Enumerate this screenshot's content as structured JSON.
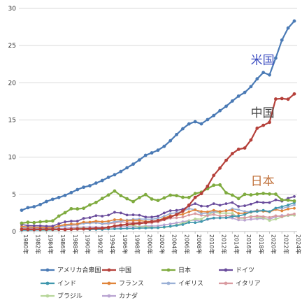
{
  "chart_data": {
    "type": "line",
    "title": "",
    "xlabel": "",
    "ylabel": "",
    "ylim": [
      0,
      30
    ],
    "yticks": [
      0,
      5,
      10,
      15,
      20,
      25,
      30
    ],
    "grid": "horizontal",
    "legend_position": "bottom",
    "x": [
      "1980年",
      "1981年",
      "1982年",
      "1983年",
      "1984年",
      "1985年",
      "1986年",
      "1987年",
      "1988年",
      "1989年",
      "1990年",
      "1991年",
      "1992年",
      "1993年",
      "1994年",
      "1995年",
      "1996年",
      "1997年",
      "1998年",
      "1999年",
      "2000年",
      "2001年",
      "2002年",
      "2003年",
      "2004年",
      "2005年",
      "2006年",
      "2007年",
      "2008年",
      "2009年",
      "2010年",
      "2011年",
      "2012年",
      "2013年",
      "2014年",
      "2015年",
      "2016年",
      "2017年",
      "2018年",
      "2019年",
      "2020年",
      "2021年",
      "2022年",
      "2023年",
      "2024年"
    ],
    "xtick_labels": [
      "1980年",
      "1982年",
      "1984年",
      "1986年",
      "1988年",
      "1990年",
      "1992年",
      "1994年",
      "1996年",
      "1998年",
      "2000年",
      "2002年",
      "2004年",
      "2006年",
      "2008年",
      "2010年",
      "2012年",
      "2014年",
      "2016年",
      "2018年",
      "2020年",
      "2022年",
      "2024年"
    ],
    "callouts": [
      {
        "text": "米国",
        "series": "アメリカ合衆国",
        "color": "#3b4cc0"
      },
      {
        "text": "中国",
        "series": "中国",
        "color": "#444444"
      },
      {
        "text": "日本",
        "series": "日本",
        "color": "#c0703a"
      }
    ],
    "series": [
      {
        "name": "アメリカ合衆国",
        "color": "#4a7ab5",
        "values": [
          2.86,
          3.21,
          3.34,
          3.63,
          4.04,
          4.34,
          4.58,
          4.86,
          5.24,
          5.64,
          5.96,
          6.16,
          6.52,
          6.86,
          7.29,
          7.64,
          8.07,
          8.58,
          9.06,
          9.63,
          10.25,
          10.58,
          10.94,
          11.46,
          12.21,
          13.04,
          13.82,
          14.47,
          14.77,
          14.48,
          15.05,
          15.6,
          16.25,
          16.84,
          17.55,
          18.21,
          18.7,
          19.48,
          20.53,
          21.38,
          21.06,
          23.32,
          25.74,
          27.36,
          28.3
        ]
      },
      {
        "name": "中国",
        "color": "#b5403a",
        "values": [
          0.3,
          0.29,
          0.28,
          0.3,
          0.31,
          0.31,
          0.3,
          0.27,
          0.31,
          0.35,
          0.36,
          0.38,
          0.43,
          0.44,
          0.56,
          0.73,
          0.86,
          0.96,
          1.03,
          1.09,
          1.21,
          1.34,
          1.47,
          1.66,
          1.96,
          2.29,
          2.75,
          3.55,
          4.59,
          5.1,
          6.09,
          7.55,
          8.53,
          9.57,
          10.48,
          11.06,
          11.23,
          12.31,
          13.89,
          14.28,
          14.69,
          17.82,
          17.88,
          17.79,
          18.5
        ]
      },
      {
        "name": "日本",
        "color": "#7fab3f",
        "values": [
          1.13,
          1.25,
          1.2,
          1.3,
          1.37,
          1.43,
          2.08,
          2.54,
          3.07,
          3.05,
          3.13,
          3.58,
          3.91,
          4.45,
          4.91,
          5.45,
          4.83,
          4.41,
          4.03,
          4.56,
          4.97,
          4.37,
          4.18,
          4.52,
          4.89,
          4.83,
          4.6,
          4.58,
          5.11,
          5.29,
          5.76,
          6.23,
          6.27,
          5.21,
          4.9,
          4.44,
          5.0,
          4.93,
          5.04,
          5.12,
          5.05,
          5.03,
          4.26,
          4.21,
          4.11
        ]
      },
      {
        "name": "ドイツ",
        "color": "#6a4c9c",
        "values": [
          0.95,
          0.8,
          0.78,
          0.77,
          0.72,
          0.73,
          1.05,
          1.31,
          1.4,
          1.4,
          1.77,
          1.87,
          2.14,
          2.07,
          2.21,
          2.59,
          2.5,
          2.22,
          2.24,
          2.2,
          1.95,
          1.95,
          2.08,
          2.5,
          2.81,
          2.85,
          3.0,
          3.43,
          3.75,
          3.42,
          3.4,
          3.75,
          3.54,
          3.75,
          3.9,
          3.38,
          3.47,
          3.69,
          3.98,
          3.89,
          3.89,
          4.26,
          4.08,
          4.46,
          4.71
        ]
      },
      {
        "name": "インド",
        "color": "#3f97ad",
        "values": [
          0.19,
          0.2,
          0.21,
          0.22,
          0.22,
          0.24,
          0.25,
          0.28,
          0.3,
          0.3,
          0.32,
          0.27,
          0.29,
          0.28,
          0.33,
          0.36,
          0.39,
          0.42,
          0.42,
          0.46,
          0.47,
          0.49,
          0.51,
          0.61,
          0.71,
          0.82,
          0.94,
          1.22,
          1.2,
          1.34,
          1.68,
          1.82,
          1.83,
          1.86,
          2.04,
          2.1,
          2.29,
          2.65,
          2.7,
          2.84,
          2.67,
          3.15,
          3.35,
          3.57,
          3.89
        ]
      },
      {
        "name": "フランス",
        "color": "#e0843a",
        "values": [
          0.7,
          0.62,
          0.58,
          0.56,
          0.53,
          0.55,
          0.77,
          0.93,
          1.01,
          1.01,
          1.27,
          1.27,
          1.4,
          1.32,
          1.39,
          1.6,
          1.61,
          1.46,
          1.51,
          1.49,
          1.36,
          1.38,
          1.49,
          1.84,
          2.12,
          2.2,
          2.32,
          2.66,
          2.92,
          2.69,
          2.64,
          2.86,
          2.68,
          2.81,
          2.86,
          2.44,
          2.47,
          2.59,
          2.79,
          2.73,
          2.64,
          2.96,
          2.78,
          3.03,
          3.13
        ]
      },
      {
        "name": "イギリス",
        "color": "#9ab0d6",
        "values": [
          0.56,
          0.54,
          0.51,
          0.49,
          0.46,
          0.49,
          0.6,
          0.75,
          0.91,
          0.93,
          1.09,
          1.14,
          1.18,
          1.06,
          1.14,
          1.34,
          1.41,
          1.55,
          1.65,
          1.68,
          1.66,
          1.64,
          1.78,
          2.06,
          2.42,
          2.54,
          2.71,
          3.09,
          2.92,
          2.41,
          2.49,
          2.66,
          2.71,
          2.78,
          3.06,
          2.93,
          2.69,
          2.68,
          2.87,
          2.85,
          2.7,
          3.14,
          3.09,
          3.34,
          3.59
        ]
      },
      {
        "name": "イタリア",
        "color": "#d99aa0",
        "values": [
          0.48,
          0.43,
          0.43,
          0.44,
          0.44,
          0.45,
          0.63,
          0.78,
          0.86,
          0.89,
          1.14,
          1.2,
          1.27,
          1.02,
          1.06,
          1.17,
          1.31,
          1.24,
          1.27,
          1.25,
          1.15,
          1.17,
          1.27,
          1.57,
          1.8,
          1.85,
          1.94,
          2.21,
          2.41,
          2.19,
          2.14,
          2.29,
          2.09,
          2.14,
          2.16,
          1.84,
          1.88,
          1.96,
          2.09,
          2.01,
          1.9,
          2.12,
          2.01,
          2.26,
          2.37
        ]
      },
      {
        "name": "ブラジル",
        "color": "#b7d69a",
        "values": [
          0.24,
          0.26,
          0.28,
          0.2,
          0.2,
          0.22,
          0.26,
          0.29,
          0.33,
          0.44,
          0.46,
          0.41,
          0.39,
          0.44,
          0.56,
          0.77,
          0.85,
          0.88,
          0.86,
          0.6,
          0.66,
          0.56,
          0.51,
          0.56,
          0.67,
          0.89,
          1.11,
          1.4,
          1.7,
          1.67,
          2.21,
          2.62,
          2.47,
          2.47,
          2.46,
          1.8,
          1.8,
          2.06,
          1.92,
          1.87,
          1.48,
          1.67,
          1.95,
          2.17,
          2.19
        ]
      },
      {
        "name": "カナダ",
        "color": "#b9a3d1",
        "values": [
          0.27,
          0.31,
          0.31,
          0.34,
          0.35,
          0.36,
          0.37,
          0.43,
          0.51,
          0.57,
          0.59,
          0.61,
          0.59,
          0.58,
          0.58,
          0.6,
          0.63,
          0.66,
          0.63,
          0.68,
          0.74,
          0.74,
          0.76,
          0.9,
          1.02,
          1.17,
          1.32,
          1.47,
          1.55,
          1.37,
          1.62,
          1.79,
          1.83,
          1.85,
          1.81,
          1.56,
          1.53,
          1.65,
          1.72,
          1.74,
          1.65,
          2.0,
          2.16,
          2.14,
          2.21
        ]
      }
    ]
  }
}
